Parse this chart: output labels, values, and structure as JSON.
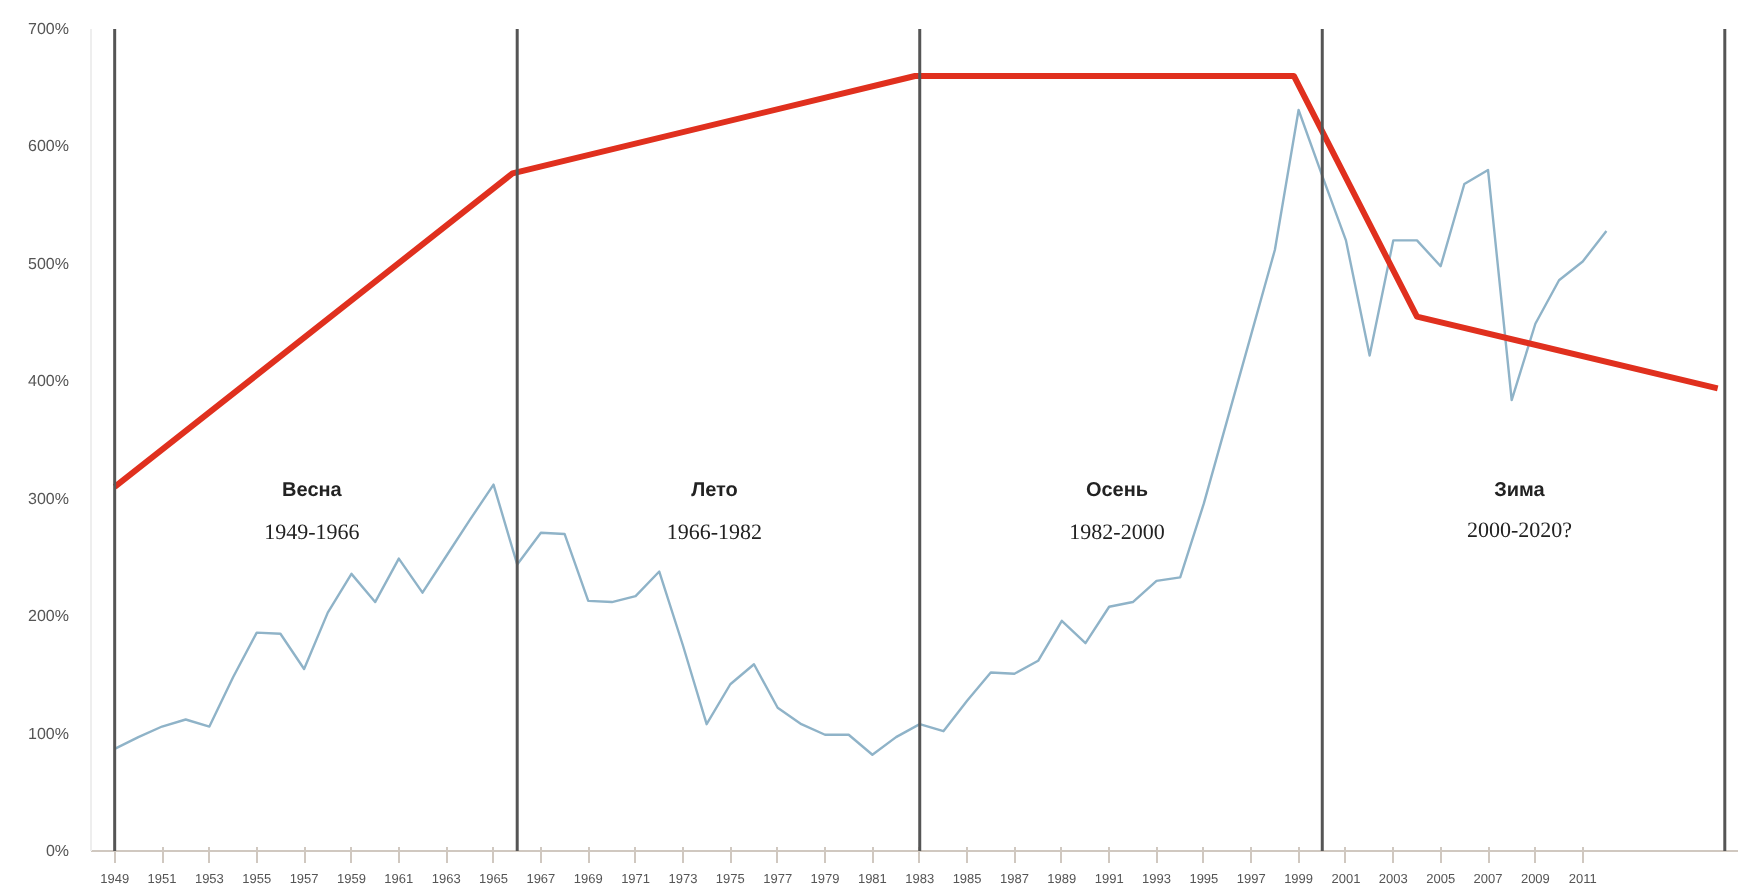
{
  "chart_data": {
    "type": "line",
    "x": [
      1949,
      1950,
      1951,
      1952,
      1953,
      1954,
      1955,
      1956,
      1957,
      1958,
      1959,
      1960,
      1961,
      1962,
      1963,
      1964,
      1965,
      1966,
      1967,
      1968,
      1969,
      1970,
      1971,
      1972,
      1973,
      1974,
      1975,
      1976,
      1977,
      1978,
      1979,
      1980,
      1981,
      1982,
      1983,
      1984,
      1985,
      1986,
      1987,
      1988,
      1989,
      1990,
      1991,
      1992,
      1993,
      1994,
      1995,
      1996,
      1997,
      1998,
      1999,
      2000,
      2001,
      2002,
      2003,
      2004,
      2005,
      2006,
      2007,
      2008,
      2009,
      2010,
      2011,
      2012
    ],
    "series": [
      {
        "color": "#8fb3c8",
        "values": [
          87,
          97,
          106,
          112,
          106,
          148,
          186,
          185,
          155,
          203,
          236,
          212,
          249,
          220,
          251,
          282,
          312,
          244,
          271,
          270,
          213,
          212,
          217,
          238,
          175,
          108,
          142,
          159,
          122,
          108,
          99,
          99,
          82,
          97,
          108,
          102,
          128,
          152,
          151,
          162,
          196,
          177,
          208,
          212,
          230,
          233,
          296,
          368,
          440,
          512,
          631,
          575,
          520,
          422,
          520,
          520,
          498,
          568,
          580,
          384,
          449,
          486,
          502,
          528
        ]
      },
      {
        "color": "#e0301e",
        "x": [
          1949,
          1965.8,
          1982.8,
          1998.8,
          2004,
          2016.7
        ],
        "values": [
          310,
          577,
          660,
          660,
          455,
          394
        ]
      }
    ],
    "xlim": [
      1948,
      2017.6
    ],
    "xticks": [
      1949,
      1951,
      1953,
      1955,
      1957,
      1959,
      1961,
      1963,
      1965,
      1967,
      1969,
      1971,
      1973,
      1975,
      1977,
      1979,
      1981,
      1983,
      1985,
      1987,
      1989,
      1991,
      1993,
      1995,
      1997,
      1999,
      2001,
      2003,
      2005,
      2007,
      2009,
      2011
    ],
    "ylim": [
      0,
      700
    ],
    "yticks": [
      {
        "value": 0,
        "label": "0%"
      },
      {
        "value": 100,
        "label": "100%"
      },
      {
        "value": 200,
        "label": "200%"
      },
      {
        "value": 300,
        "label": "300%"
      },
      {
        "value": 400,
        "label": "400%"
      },
      {
        "value": 500,
        "label": "500%"
      },
      {
        "value": 600,
        "label": "600%"
      },
      {
        "value": 700,
        "label": "700%"
      }
    ],
    "ref_lines": [
      {
        "axis": "x",
        "value": 1949,
        "color": "#555555"
      },
      {
        "axis": "x",
        "value": 1966,
        "color": "#555555"
      },
      {
        "axis": "x",
        "value": 1983,
        "color": "#555555"
      },
      {
        "axis": "x",
        "value": 2000,
        "color": "#555555"
      },
      {
        "axis": "x",
        "value": 2017,
        "color": "#555555"
      }
    ],
    "annotations": [
      "Весна",
      "1949-1966",
      "Лето",
      "1966-1982",
      "Осень",
      "1982-2000",
      "Зима",
      "2000-2020?"
    ]
  }
}
